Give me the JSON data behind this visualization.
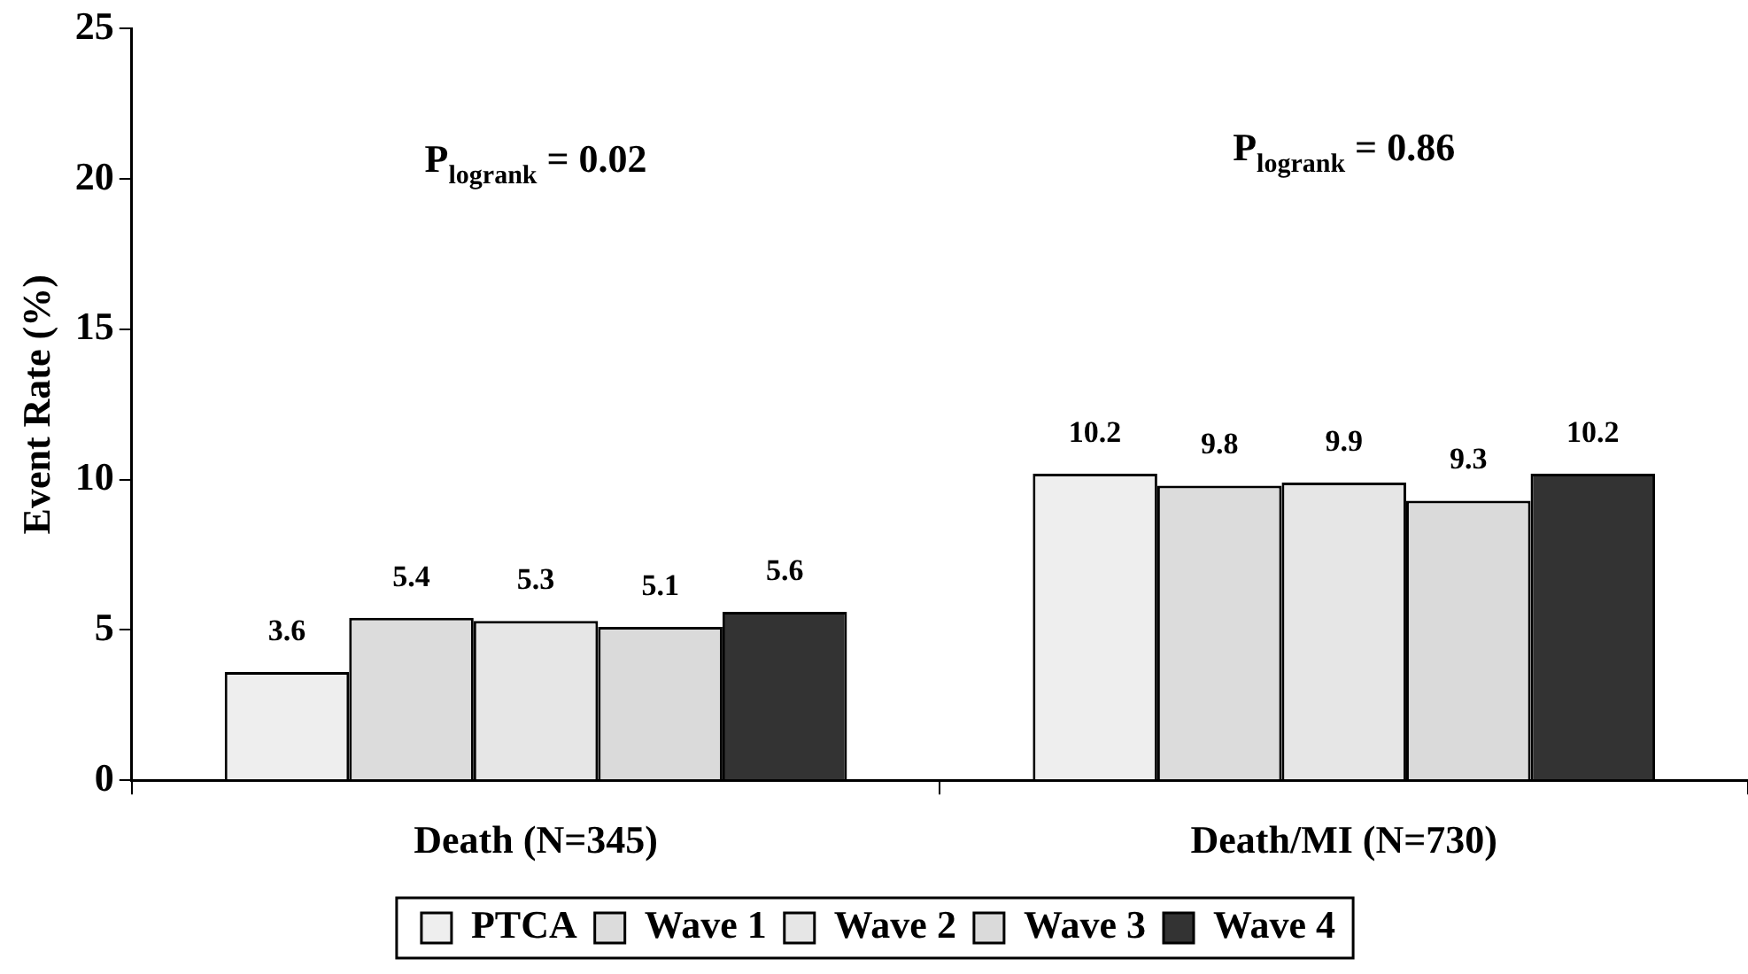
{
  "chart_data": {
    "type": "bar",
    "ylabel": "Event Rate (%)",
    "categories": [
      "Death (N=345)",
      "Death/MI (N=730)"
    ],
    "series": [
      {
        "name": "PTCA",
        "color": "#eeeeee",
        "values": [
          3.6,
          10.2
        ]
      },
      {
        "name": "Wave 1",
        "color": "#dcdcdc",
        "values": [
          5.4,
          9.8
        ]
      },
      {
        "name": "Wave 2",
        "color": "#e6e6e6",
        "values": [
          5.3,
          9.9
        ]
      },
      {
        "name": "Wave 3",
        "color": "#dadada",
        "values": [
          5.1,
          9.3
        ]
      },
      {
        "name": "Wave 4",
        "color": "#333333",
        "values": [
          5.6,
          10.2
        ]
      }
    ],
    "ylim": [
      0,
      25
    ],
    "yticks": [
      0,
      5,
      10,
      15,
      20,
      25
    ],
    "grid": false,
    "legend": "bottom",
    "data_labels": true,
    "annotations": [
      "P$_{logrank}$ = 0.02",
      "P$_{logrank}$ = 0.86"
    ]
  }
}
